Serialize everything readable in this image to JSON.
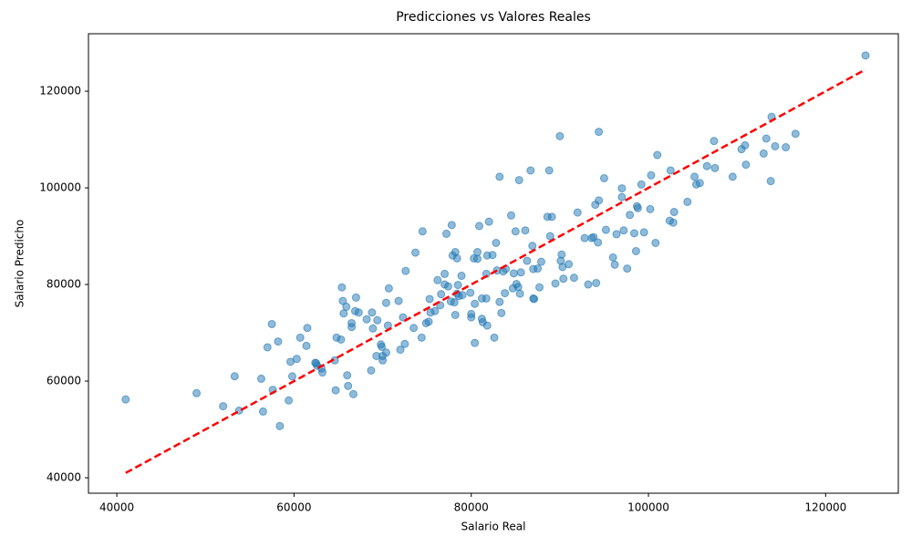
{
  "chart_data": {
    "type": "scatter",
    "title": "Predicciones vs Valores Reales",
    "x_label": "Salario Real",
    "y_label": "Salario Predicho",
    "color": "#1f77b4",
    "x": [
      41000,
      49000,
      52000,
      53300,
      53800,
      56300,
      56500,
      57000,
      57500,
      57600,
      58200,
      58400,
      59400,
      59600,
      59800,
      60300,
      60700,
      61400,
      61500,
      62400,
      62600,
      62500,
      63100,
      63200,
      64600,
      64700,
      64800,
      65300,
      65400,
      65500,
      65600,
      65900,
      66000,
      66100,
      66500,
      66500,
      66700,
      66900,
      67000,
      67300,
      68200,
      68700,
      68800,
      68900,
      69300,
      69400,
      69800,
      69900,
      70000,
      70000,
      70400,
      70400,
      70600,
      70700,
      71800,
      72000,
      72300,
      72500,
      72600,
      73500,
      73700,
      74400,
      74500,
      74900,
      75200,
      75300,
      75400,
      75900,
      76200,
      76500,
      76600,
      77000,
      77000,
      77200,
      77400,
      77700,
      77800,
      77900,
      78100,
      78200,
      78200,
      78400,
      78400,
      78500,
      78600,
      78900,
      79000,
      79900,
      80000,
      80000,
      80300,
      80400,
      80400,
      80700,
      80700,
      80900,
      81200,
      81200,
      81300,
      81700,
      81700,
      81800,
      81800,
      82000,
      82400,
      82600,
      82800,
      82900,
      83200,
      83200,
      83400,
      83600,
      83800,
      83900,
      84500,
      84700,
      84800,
      85000,
      85100,
      85300,
      85400,
      85500,
      85600,
      86100,
      86300,
      86700,
      86900,
      87000,
      87000,
      87100,
      87500,
      87700,
      87900,
      88600,
      88800,
      88900,
      89100,
      89500,
      90000,
      90100,
      90200,
      90300,
      90400,
      91000,
      91600,
      92000,
      92800,
      93200,
      93600,
      93800,
      94000,
      94100,
      94300,
      94400,
      94400,
      95000,
      95200,
      96000,
      96200,
      96400,
      97000,
      97000,
      97200,
      97600,
      97900,
      98400,
      98600,
      98700,
      98800,
      99200,
      99500,
      100200,
      100300,
      100800,
      101000,
      102400,
      102500,
      102800,
      102900,
      104400,
      105200,
      105400,
      105800,
      106600,
      107400,
      107500,
      109500,
      110500,
      111000,
      110900,
      113000,
      113300,
      113800,
      113900,
      114300,
      115500,
      116600,
      124500
    ],
    "values": [
      56200,
      57500,
      54800,
      61000,
      53900,
      60500,
      53700,
      67000,
      71800,
      58200,
      68200,
      50700,
      56000,
      64000,
      61000,
      64600,
      69000,
      67300,
      71000,
      63800,
      63200,
      63700,
      62600,
      61800,
      64300,
      58100,
      69000,
      68600,
      79400,
      76600,
      74000,
      75400,
      61200,
      59000,
      72000,
      71200,
      57300,
      74500,
      77300,
      74200,
      72800,
      62200,
      74200,
      70900,
      65200,
      72600,
      67600,
      67100,
      64300,
      65200,
      65900,
      76200,
      71500,
      79200,
      76600,
      66500,
      73200,
      67700,
      82800,
      71000,
      86600,
      69000,
      91000,
      72000,
      72300,
      77000,
      74200,
      74500,
      80900,
      75700,
      78000,
      82200,
      80000,
      90500,
      79600,
      76500,
      92300,
      86000,
      76300,
      73700,
      86700,
      85400,
      78100,
      79900,
      77600,
      81800,
      77800,
      78300,
      73900,
      73200,
      85400,
      67900,
      76000,
      86700,
      85300,
      92100,
      77100,
      72900,
      72200,
      82200,
      77100,
      71500,
      86000,
      93000,
      86100,
      69000,
      88600,
      82900,
      102300,
      76400,
      74100,
      82700,
      78200,
      83200,
      94300,
      79200,
      82300,
      91000,
      80100,
      79500,
      101600,
      78100,
      82500,
      91200,
      84900,
      103600,
      88000,
      83200,
      77100,
      77000,
      83300,
      79400,
      84700,
      94000,
      103600,
      90000,
      94000,
      80200,
      110700,
      84900,
      86200,
      83600,
      81200,
      84200,
      81400,
      94900,
      89600,
      80000,
      89600,
      89800,
      96500,
      80300,
      88700,
      97400,
      111600,
      102000,
      91300,
      85600,
      84100,
      90400,
      98100,
      99900,
      91200,
      83300,
      94400,
      90600,
      86900,
      96200,
      95800,
      100700,
      90800,
      95600,
      102600,
      88600,
      106800,
      93200,
      103600,
      92800,
      95000,
      97100,
      102300,
      100700,
      101000,
      104500,
      109700,
      104100,
      102300,
      108000,
      104800,
      108800,
      107100,
      110200,
      101400,
      114700,
      108600,
      108400,
      111200,
      127400
    ],
    "reference_line": {
      "x": [
        41000,
        124500
      ],
      "values": [
        41000,
        124500
      ],
      "color": "#ff0000"
    },
    "xlim": [
      36800,
      128200
    ],
    "ylim": [
      36800,
      131900
    ],
    "xticks": [
      40000,
      60000,
      80000,
      100000,
      120000
    ],
    "yticks": [
      40000,
      60000,
      80000,
      100000,
      120000
    ],
    "grid": false
  }
}
